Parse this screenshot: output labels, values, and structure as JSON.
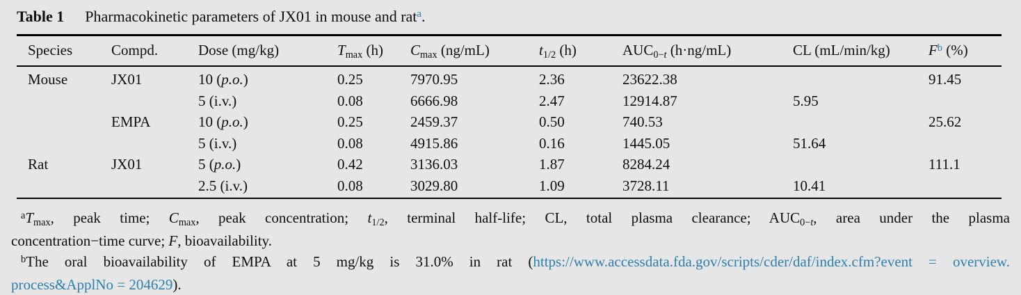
{
  "colors": {
    "background": "#e6e6e6",
    "text": "#0e0e0e",
    "accent": "#2b80ad"
  },
  "title": {
    "label": "Table 1",
    "text": "Pharmacokinetic parameters of JX01 in mouse and rat",
    "superscript": "a",
    "period": "."
  },
  "table": {
    "headers": {
      "species": "Species",
      "compound": "Compd.",
      "dose": "Dose (mg/kg)",
      "tmax": {
        "sym": "T",
        "sub": "max",
        "unit": " (h)"
      },
      "cmax": {
        "sym": "C",
        "sub": "max",
        "unit": " (ng/mL)"
      },
      "thalf": {
        "sym": "t",
        "sub": "1/2",
        "unit": " (h)"
      },
      "auc": {
        "sym": "AUC",
        "sub": "0−",
        "sub_it": "t",
        "unit": " (h·ng/mL)"
      },
      "cl": "CL (mL/min/kg)",
      "f": {
        "sym": "F",
        "sup": "b",
        "unit": " (%)"
      }
    },
    "rows": [
      {
        "species": "Mouse",
        "compound": "JX01",
        "dose": {
          "pre": "10 (",
          "route": "p.o.",
          "post": ")"
        },
        "tmax": "0.25",
        "cmax": "7970.95",
        "thalf": "2.36",
        "auc": "23622.38",
        "cl": "",
        "f": "91.45"
      },
      {
        "species": "",
        "compound": "",
        "dose": {
          "pre": "5 (",
          "route": "i.v.",
          "post": ")"
        },
        "tmax": "0.08",
        "cmax": "6666.98",
        "thalf": "2.47",
        "auc": "12914.87",
        "cl": "5.95",
        "f": ""
      },
      {
        "species": "",
        "compound": "EMPA",
        "dose": {
          "pre": "10 (",
          "route": "p.o.",
          "post": ")"
        },
        "tmax": "0.25",
        "cmax": "2459.37",
        "thalf": "0.50",
        "auc": "740.53",
        "cl": "",
        "f": "25.62"
      },
      {
        "species": "",
        "compound": "",
        "dose": {
          "pre": "5 (",
          "route": "i.v.",
          "post": ")"
        },
        "tmax": "0.08",
        "cmax": "4915.86",
        "thalf": "0.16",
        "auc": "1445.05",
        "cl": "51.64",
        "f": ""
      },
      {
        "species": "Rat",
        "compound": "JX01",
        "dose": {
          "pre": "5 (",
          "route": "p.o.",
          "post": ")"
        },
        "tmax": "0.42",
        "cmax": "3136.03",
        "thalf": "1.87",
        "auc": "8284.24",
        "cl": "",
        "f": "111.1"
      },
      {
        "species": "",
        "compound": "",
        "dose": {
          "pre": "2.5 (",
          "route": "i.v.",
          "post": ")"
        },
        "tmax": "0.08",
        "cmax": "3029.80",
        "thalf": "1.09",
        "auc": "3728.11",
        "cl": "10.41",
        "f": ""
      }
    ]
  },
  "footnote_a": {
    "marker": "a",
    "line1": {
      "tsym": "T",
      "tsub": "max",
      "s1": ", peak time; ",
      "csym": "C",
      "csub": "max",
      "s2": ", peak concentration; ",
      "hsym": "t",
      "hsub": "1/2",
      "s3": ", terminal half-life; CL, total plasma clearance; AUC",
      "aucsub": "0−",
      "aucsub_it": "t",
      "s4": ", area under the plasma"
    },
    "line2": {
      "s1": "concentration−time curve; ",
      "fsym": "F",
      "s2": ", bioavailability."
    }
  },
  "footnote_b": {
    "marker": "b",
    "line1": {
      "s1": "The oral bioavailability of EMPA at 5 mg/kg is 31.0% in rat (",
      "link": "https://www.accessdata.fda.gov/scripts/cder/daf/index.cfm?event = overview."
    },
    "line2": {
      "link": "process&ApplNo = 204629",
      "s1": ")."
    }
  }
}
